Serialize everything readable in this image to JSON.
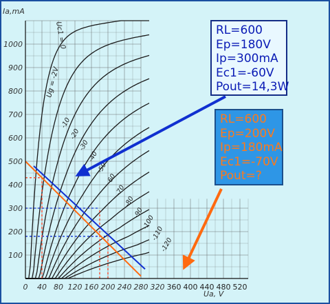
{
  "chart_data": {
    "type": "line",
    "title": "",
    "xlabel": "Ua, V",
    "ylabel": "Ia, mA",
    "x_ticks": [
      0,
      40,
      80,
      120,
      160,
      200,
      240,
      280,
      320,
      360,
      400,
      440,
      480,
      520
    ],
    "y_ticks": [
      100,
      200,
      300,
      400,
      500,
      600,
      700,
      800,
      900,
      1000
    ],
    "x_tick_labels": [
      "0",
      "40",
      "80",
      "120",
      "160",
      "200",
      "240",
      "280",
      "320",
      "360",
      "400",
      "440",
      "480",
      "520"
    ],
    "y_tick_labels": [
      "100",
      "200",
      "300",
      "400",
      "500",
      "600",
      "700",
      "800",
      "900",
      "1000"
    ],
    "ylabel_top": "Ia,mA",
    "xlim": [
      0,
      540
    ],
    "ylim": [
      0,
      1100
    ],
    "grid": true,
    "curve_label_top": "Uc1 = 0",
    "curve_label_second": "Ug = -2V",
    "curve_labels": [
      "-10",
      "-20",
      "-30",
      "-40",
      "-50",
      "-60",
      "-70",
      "-80",
      "-90",
      "-100",
      "-110",
      "-120"
    ],
    "series": [
      {
        "color": "#1030d0",
        "x": [
          20,
          290
        ],
        "y": [
          480,
          40
        ]
      },
      {
        "color": "#ff6a10",
        "x": [
          0,
          280
        ],
        "y": [
          500,
          10
        ]
      }
    ],
    "guides": [
      {
        "color": "#1030d0",
        "style": "dotted",
        "y": 300,
        "x": [
          0,
          180
        ]
      },
      {
        "color": "#1030d0",
        "style": "dotted",
        "y": 180,
        "x": [
          0,
          200
        ]
      },
      {
        "color": "#ff4020",
        "style": "dotted",
        "y": 430,
        "x": [
          0,
          40
        ]
      },
      {
        "color": "#ff4020",
        "style": "dotted",
        "x": 40,
        "y": [
          0,
          430
        ]
      },
      {
        "color": "#ff4020",
        "style": "dotted",
        "x": 180,
        "y": [
          0,
          300
        ]
      },
      {
        "color": "#ff4020",
        "style": "dotted",
        "x": 200,
        "y": [
          0,
          180
        ]
      }
    ]
  },
  "colors": {
    "blue": "#1030d0",
    "orange": "#ff6a10"
  },
  "annotations": {
    "blue": [
      "RL=600",
      "Ep=180V",
      "Ip=300mA",
      "Ec1=-60V",
      "Pout=14,3W"
    ],
    "orange": [
      "RL=600",
      "Ep=200V",
      "Ip=180mA",
      "Ec1=-70V",
      "Pout=?"
    ]
  }
}
